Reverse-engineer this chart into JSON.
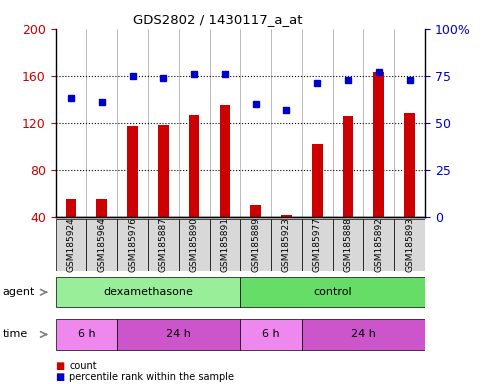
{
  "title": "GDS2802 / 1430117_a_at",
  "samples": [
    "GSM185924",
    "GSM185964",
    "GSM185976",
    "GSM185887",
    "GSM185890",
    "GSM185891",
    "GSM185889",
    "GSM185923",
    "GSM185977",
    "GSM185888",
    "GSM185892",
    "GSM185893"
  ],
  "counts": [
    55,
    55,
    117,
    118,
    127,
    135,
    50,
    42,
    102,
    126,
    163,
    128
  ],
  "percentile_ranks": [
    63,
    61,
    75,
    74,
    76,
    76,
    60,
    57,
    71,
    73,
    77,
    73
  ],
  "bar_color": "#cc0000",
  "dot_color": "#0000cc",
  "left_ylim": [
    40,
    200
  ],
  "left_yticks": [
    40,
    80,
    120,
    160,
    200
  ],
  "right_ylim": [
    0,
    100
  ],
  "right_yticks": [
    0,
    25,
    50,
    75,
    100
  ],
  "right_yticklabels": [
    "0",
    "25",
    "50",
    "75",
    "100%"
  ],
  "agent_groups": [
    {
      "label": "dexamethasone",
      "start": 0,
      "end": 5,
      "color": "#99ee99"
    },
    {
      "label": "control",
      "start": 6,
      "end": 11,
      "color": "#66dd66"
    }
  ],
  "time_groups": [
    {
      "label": "6 h",
      "start": 0,
      "end": 1,
      "color": "#ee88ee"
    },
    {
      "label": "24 h",
      "start": 2,
      "end": 5,
      "color": "#cc55cc"
    },
    {
      "label": "6 h",
      "start": 6,
      "end": 7,
      "color": "#ee88ee"
    },
    {
      "label": "24 h",
      "start": 8,
      "end": 11,
      "color": "#cc55cc"
    }
  ],
  "legend_count_color": "#cc0000",
  "legend_dot_color": "#0000cc",
  "grid_color": "#000000",
  "tick_label_color_left": "#cc0000",
  "tick_label_color_right": "#0000cc",
  "bar_width": 0.35,
  "background_color": "#ffffff",
  "plot_bg_color": "#ffffff"
}
